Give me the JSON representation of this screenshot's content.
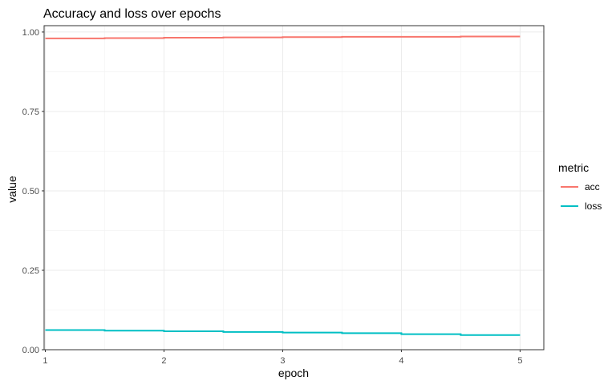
{
  "chart_data": {
    "type": "line",
    "title": "Accuracy and loss over epochs",
    "xlabel": "epoch",
    "ylabel": "value",
    "xlim": [
      0.99,
      5.2
    ],
    "ylim": [
      0.0,
      1.02
    ],
    "x_ticks": [
      1,
      2,
      3,
      4,
      5
    ],
    "x_tick_labels": [
      "1",
      "2",
      "3",
      "4",
      "5"
    ],
    "y_ticks": [
      0.0,
      0.25,
      0.5,
      0.75,
      1.0
    ],
    "y_tick_labels": [
      "0.00",
      "0.25",
      "0.50",
      "0.75",
      "1.00"
    ],
    "grid": true,
    "legend": {
      "title": "metric",
      "position": "right"
    },
    "series": [
      {
        "name": "acc",
        "color": "#F8766D",
        "x": [
          1,
          1.5,
          2,
          2.5,
          3,
          3.5,
          4,
          4.5,
          5
        ],
        "values": [
          0.98,
          0.981,
          0.982,
          0.983,
          0.984,
          0.985,
          0.985,
          0.986,
          0.986
        ]
      },
      {
        "name": "loss",
        "color": "#00BFC4",
        "x": [
          1,
          1.5,
          2,
          2.5,
          3,
          3.5,
          4,
          4.5,
          5
        ],
        "values": [
          0.062,
          0.06,
          0.058,
          0.056,
          0.054,
          0.052,
          0.049,
          0.046,
          0.044
        ]
      }
    ]
  }
}
